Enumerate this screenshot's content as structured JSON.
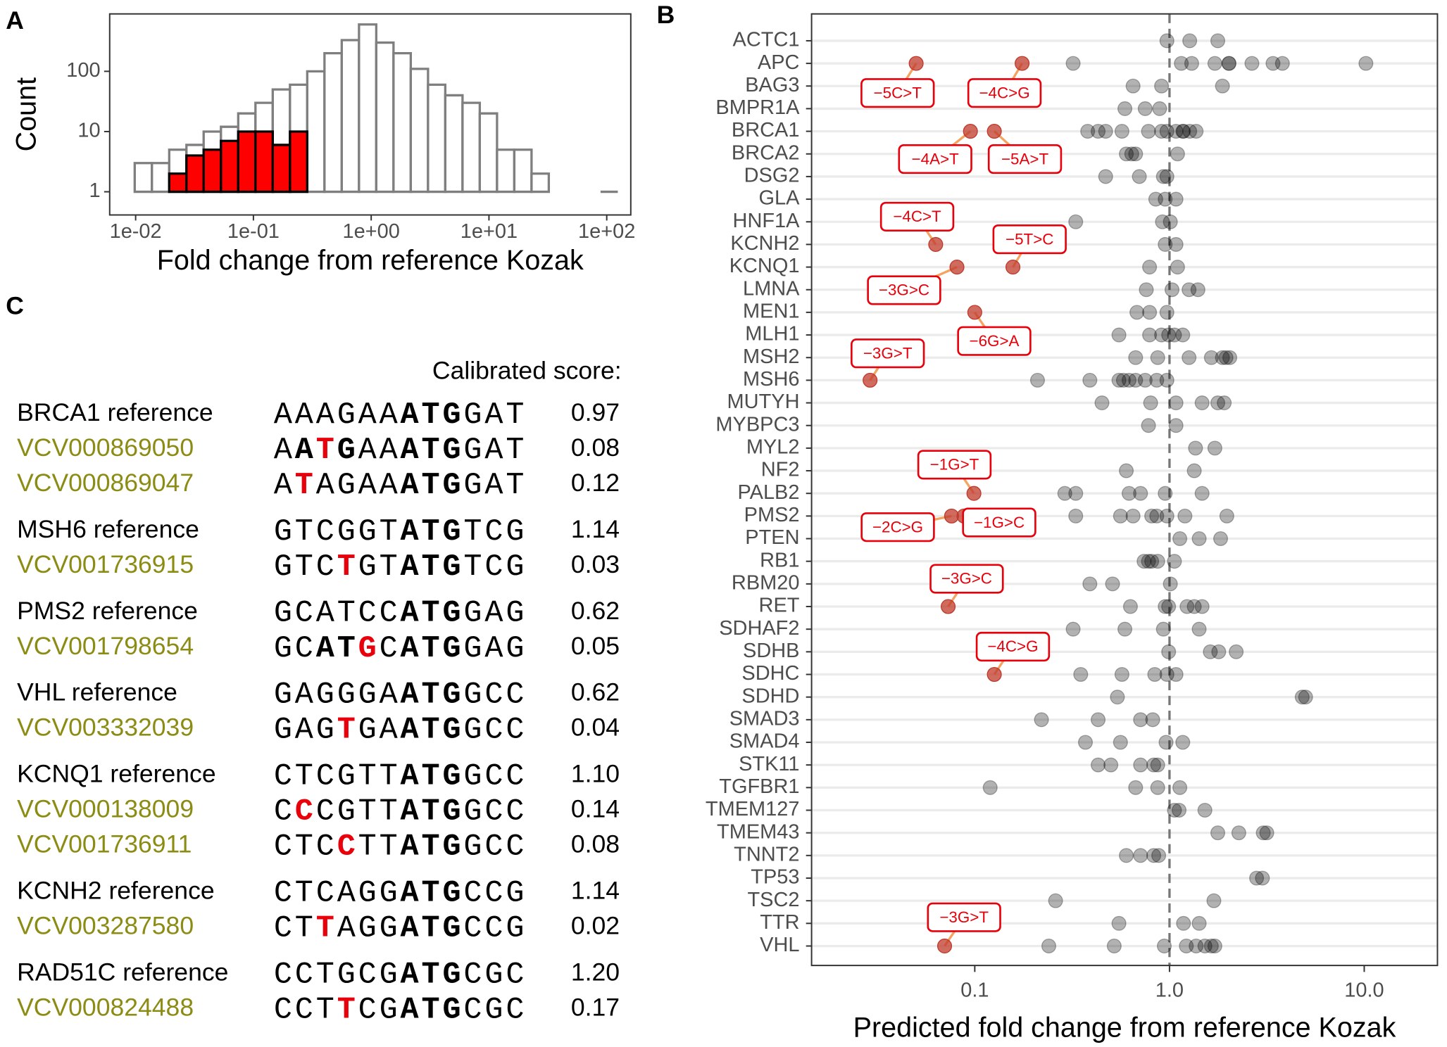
{
  "panel_labels": [
    "A",
    "B",
    "C"
  ],
  "chart_data": [
    {
      "type": "histogram",
      "ylabel": "Count",
      "xlabel": "Fold change from reference Kozak",
      "log_x": true,
      "log_y": true,
      "bins": [
        0.00982,
        0.01375,
        0.01928,
        0.027,
        0.0378,
        0.053,
        0.0743,
        0.1041,
        0.1459,
        0.2044,
        0.2864,
        0.4013,
        0.5623,
        0.788,
        1.104,
        1.547,
        2.168,
        3.038,
        4.256,
        5.964,
        8.356,
        11.71,
        16.41,
        22.99,
        32.21,
        45.13,
        63.24,
        88.6,
        124.2
      ],
      "series": [
        {
          "color": "#7f7f7f",
          "fill": "#ffffff",
          "values": [
            3,
            3,
            5,
            6,
            10,
            12,
            20,
            30,
            50,
            60,
            100,
            200,
            330,
            600,
            300,
            200,
            110,
            60,
            40,
            30,
            20,
            5,
            5,
            2,
            0,
            0,
            0,
            1
          ]
        },
        {
          "color": "#000000",
          "fill": "#ff0000",
          "values": [
            0,
            0,
            2,
            4,
            5,
            7,
            10,
            10,
            6,
            10,
            0,
            0,
            0,
            0,
            0,
            0,
            0,
            0,
            0,
            0,
            0,
            0,
            0,
            0,
            0,
            0,
            0,
            0
          ]
        }
      ],
      "xlim": [
        0.00602,
        160
      ],
      "ylim": [
        0.412,
        899
      ],
      "xticks": [
        {
          "value": 0.01,
          "label": "1e-02"
        },
        {
          "value": 0.1,
          "label": "1e-01"
        },
        {
          "value": 1,
          "label": "1e+00"
        },
        {
          "value": 10,
          "label": "1e+01"
        },
        {
          "value": 100,
          "label": "1e+02"
        }
      ],
      "yticks": [
        1,
        10,
        100
      ]
    },
    {
      "type": "dot",
      "xlabel": "Predicted fold change from reference Kozak",
      "log_x": true,
      "grid": true,
      "reference_line": 1,
      "point_color": "#000000",
      "point_opacity": 0.3,
      "variant_color": "#c0392b",
      "label_color": "#e8000b",
      "connector_color": "#f4a460",
      "xlim": [
        0.01452,
        23.77
      ],
      "xticks": [
        0.1,
        {
          "value": 1,
          "label": "1.0"
        },
        {
          "value": 10,
          "label": "10.0"
        }
      ],
      "rows": [
        {
          "gene": "ACTC1",
          "values": [
            0.97,
            1.27,
            1.77
          ]
        },
        {
          "gene": "APC",
          "values": [
            0.32,
            1.15,
            1.3,
            1.71,
            2.02,
            2.02,
            2.65,
            3.4,
            3.8,
            10.2
          ],
          "variants": [
            {
              "value": 0.05,
              "label": "−5C>T"
            },
            {
              "value": 0.175,
              "label": "−4C>G"
            }
          ]
        },
        {
          "gene": "BAG3",
          "values": [
            0.65,
            0.91,
            1.87
          ]
        },
        {
          "gene": "BMPR1A",
          "values": [
            0.59,
            0.75,
            0.89
          ]
        },
        {
          "gene": "BRCA1",
          "values": [
            0.38,
            0.43,
            0.47,
            0.57,
            0.78,
            0.91,
            0.97,
            1.08,
            1.17,
            1.18,
            1.27,
            1.37
          ],
          "variants": [
            {
              "value": 0.095,
              "label": "−4A>T"
            },
            {
              "value": 0.126,
              "label": "−5A>T"
            }
          ]
        },
        {
          "gene": "BRCA2",
          "values": [
            0.6,
            0.64,
            0.67,
            1.1
          ]
        },
        {
          "gene": "DSG2",
          "values": [
            0.47,
            0.7,
            0.93,
            0.97
          ]
        },
        {
          "gene": "GLA",
          "values": [
            0.85,
            0.95,
            1.08
          ]
        },
        {
          "gene": "HNF1A",
          "values": [
            0.33,
            0.92,
            1.01
          ]
        },
        {
          "gene": "KCNH2",
          "values": [
            0.95,
            1.08
          ],
          "variants": [
            {
              "value": 0.063,
              "label": "−4C>T"
            }
          ]
        },
        {
          "gene": "KCNQ1",
          "values": [
            0.79,
            1.1
          ],
          "variants": [
            {
              "value": 0.081,
              "label": "−3G>C"
            },
            {
              "value": 0.157,
              "label": "−5T>C"
            }
          ]
        },
        {
          "gene": "LMNA",
          "values": [
            0.76,
            1.03,
            1.26,
            1.4
          ]
        },
        {
          "gene": "MEN1",
          "values": [
            0.68,
            0.79,
            0.97
          ],
          "variants": [
            {
              "value": 0.1,
              "label": "−6G>A"
            }
          ]
        },
        {
          "gene": "MLH1",
          "values": [
            0.55,
            0.79,
            0.91,
            0.99,
            1.06,
            1.17
          ]
        },
        {
          "gene": "MSH2",
          "values": [
            0.67,
            0.87,
            1.26,
            1.64,
            1.87,
            1.95,
            2.04
          ]
        },
        {
          "gene": "MSH6",
          "values": [
            0.21,
            0.39,
            0.55,
            0.58,
            0.62,
            0.67,
            0.75,
            0.86,
            0.97
          ],
          "variants": [
            {
              "value": 0.029,
              "label": "−3G>T"
            }
          ]
        },
        {
          "gene": "MUTYH",
          "values": [
            0.45,
            0.8,
            1.08,
            1.47,
            1.77,
            1.91
          ]
        },
        {
          "gene": "MYBPC3",
          "values": [
            0.78,
            1.08
          ]
        },
        {
          "gene": "MYL2",
          "values": [
            1.36,
            1.71
          ]
        },
        {
          "gene": "NF2",
          "values": [
            0.6,
            1.34
          ]
        },
        {
          "gene": "PALB2",
          "values": [
            0.29,
            0.33,
            0.62,
            0.71,
            0.95,
            1.47
          ],
          "variants": [
            {
              "value": 0.099,
              "label": "−1G>T"
            }
          ]
        },
        {
          "gene": "PMS2",
          "values": [
            0.33,
            0.56,
            0.65,
            0.81,
            0.86,
            0.97,
            1.2,
            1.97
          ],
          "variants": [
            {
              "value": 0.076,
              "label": "−2C>G"
            },
            {
              "value": 0.088,
              "label": "−1G>C"
            }
          ]
        },
        {
          "gene": "PTEN",
          "values": [
            1.13,
            1.42,
            1.83
          ]
        },
        {
          "gene": "RB1",
          "values": [
            0.74,
            0.78,
            0.81,
            0.87,
            1.06
          ]
        },
        {
          "gene": "RBM20",
          "values": [
            0.39,
            0.51,
            1.01
          ]
        },
        {
          "gene": "RET",
          "values": [
            0.63,
            0.95,
            0.99,
            1.23,
            1.34,
            1.47
          ],
          "variants": [
            {
              "value": 0.073,
              "label": "−3G>C"
            }
          ]
        },
        {
          "gene": "SDHAF2",
          "values": [
            0.32,
            0.59,
            0.93,
            1.42
          ]
        },
        {
          "gene": "SDHB",
          "values": [
            0.99,
            1.62,
            1.79,
            2.2
          ]
        },
        {
          "gene": "SDHC",
          "values": [
            0.35,
            0.57,
            0.84,
            0.97,
            1.08
          ],
          "variants": [
            {
              "value": 0.126,
              "label": "−4C>G"
            }
          ]
        },
        {
          "gene": "SDHD",
          "values": [
            0.54,
            4.8,
            5.0
          ]
        },
        {
          "gene": "SMAD3",
          "values": [
            0.22,
            0.43,
            0.71,
            0.82
          ]
        },
        {
          "gene": "SMAD4",
          "values": [
            0.37,
            0.56,
            0.96,
            1.17
          ]
        },
        {
          "gene": "STK11",
          "values": [
            0.43,
            0.5,
            0.71,
            0.83,
            0.87
          ]
        },
        {
          "gene": "TGFBR1",
          "values": [
            0.12,
            0.67,
            0.87,
            1.13
          ]
        },
        {
          "gene": "TMEM127",
          "values": [
            1.06,
            1.12,
            1.52
          ]
        },
        {
          "gene": "TMEM43",
          "values": [
            1.77,
            2.27,
            3.03,
            3.16
          ]
        },
        {
          "gene": "TNNT2",
          "values": [
            0.6,
            0.71,
            0.83,
            0.88
          ]
        },
        {
          "gene": "TP53",
          "values": [
            2.8,
            3.0
          ]
        },
        {
          "gene": "TSC2",
          "values": [
            0.26,
            1.69
          ]
        },
        {
          "gene": "TTR",
          "values": [
            0.55,
            1.18,
            1.42
          ]
        },
        {
          "gene": "VHL",
          "values": [
            0.24,
            0.52,
            0.94,
            1.22,
            1.37,
            1.52,
            1.64,
            1.71
          ],
          "variants": [
            {
              "value": 0.07,
              "label": "−3G>T"
            }
          ]
        }
      ]
    }
  ],
  "sequence_table": {
    "header": "Calibrated score:",
    "reference_color": "#000000",
    "variant_color": "#8c8c14",
    "mutation_color": "#e8000b",
    "groups": [
      {
        "rows": [
          {
            "name": "BRCA1 reference",
            "kind": "reference",
            "score": "0.97",
            "segments": [
              {
                "text": "AAAGAA"
              },
              {
                "text": "ATG",
                "bold": true
              },
              {
                "text": "GAT"
              }
            ]
          },
          {
            "name": "VCV000869050",
            "kind": "variant",
            "score": "0.08",
            "segments": [
              {
                "text": "A"
              },
              {
                "text": "A",
                "bold": true
              },
              {
                "text": "T",
                "mutated": true
              },
              {
                "text": "G",
                "bold": true
              },
              {
                "text": "AA"
              },
              {
                "text": "ATG",
                "bold": true
              },
              {
                "text": "GAT"
              }
            ]
          },
          {
            "name": "VCV000869047",
            "kind": "variant",
            "score": "0.12",
            "segments": [
              {
                "text": "A"
              },
              {
                "text": "T",
                "mutated": true
              },
              {
                "text": "AGAA"
              },
              {
                "text": "ATG",
                "bold": true
              },
              {
                "text": "GAT"
              }
            ]
          }
        ]
      },
      {
        "rows": [
          {
            "name": "MSH6 reference",
            "kind": "reference",
            "score": "1.14",
            "segments": [
              {
                "text": "GTCGGT"
              },
              {
                "text": "ATG",
                "bold": true
              },
              {
                "text": "TCG"
              }
            ]
          },
          {
            "name": "VCV001736915",
            "kind": "variant",
            "score": "0.03",
            "segments": [
              {
                "text": "GTC"
              },
              {
                "text": "T",
                "mutated": true
              },
              {
                "text": "GT"
              },
              {
                "text": "ATG",
                "bold": true
              },
              {
                "text": "TCG"
              }
            ]
          }
        ]
      },
      {
        "rows": [
          {
            "name": "PMS2 reference",
            "kind": "reference",
            "score": "0.62",
            "segments": [
              {
                "text": "GCATCC"
              },
              {
                "text": "ATG",
                "bold": true
              },
              {
                "text": "GAG"
              }
            ]
          },
          {
            "name": "VCV001798654",
            "kind": "variant",
            "score": "0.05",
            "segments": [
              {
                "text": "GC"
              },
              {
                "text": "AT",
                "bold": true
              },
              {
                "text": "G",
                "mutated": true
              },
              {
                "text": "C"
              },
              {
                "text": "ATG",
                "bold": true
              },
              {
                "text": "GAG"
              }
            ]
          }
        ]
      },
      {
        "rows": [
          {
            "name": "VHL reference",
            "kind": "reference",
            "score": "0.62",
            "segments": [
              {
                "text": "GAGGGA"
              },
              {
                "text": "ATG",
                "bold": true
              },
              {
                "text": "GCC"
              }
            ]
          },
          {
            "name": "VCV003332039",
            "kind": "variant",
            "score": "0.04",
            "segments": [
              {
                "text": "GAG"
              },
              {
                "text": "T",
                "mutated": true
              },
              {
                "text": "GA"
              },
              {
                "text": "ATG",
                "bold": true
              },
              {
                "text": "GCC"
              }
            ]
          }
        ]
      },
      {
        "rows": [
          {
            "name": "KCNQ1 reference",
            "kind": "reference",
            "score": "1.10",
            "segments": [
              {
                "text": "CTCGTT"
              },
              {
                "text": "ATG",
                "bold": true
              },
              {
                "text": "GCC"
              }
            ]
          },
          {
            "name": "VCV000138009",
            "kind": "variant",
            "score": "0.14",
            "segments": [
              {
                "text": "C"
              },
              {
                "text": "C",
                "mutated": true
              },
              {
                "text": "CGTT"
              },
              {
                "text": "ATG",
                "bold": true
              },
              {
                "text": "GCC"
              }
            ]
          },
          {
            "name": "VCV001736911",
            "kind": "variant",
            "score": "0.08",
            "segments": [
              {
                "text": "CTC"
              },
              {
                "text": "C",
                "mutated": true
              },
              {
                "text": "TT"
              },
              {
                "text": "ATG",
                "bold": true
              },
              {
                "text": "GCC"
              }
            ]
          }
        ]
      },
      {
        "rows": [
          {
            "name": "KCNH2 reference",
            "kind": "reference",
            "score": "1.14",
            "segments": [
              {
                "text": "CTCAGG"
              },
              {
                "text": "ATG",
                "bold": true
              },
              {
                "text": "CCG"
              }
            ]
          },
          {
            "name": "VCV003287580",
            "kind": "variant",
            "score": "0.02",
            "segments": [
              {
                "text": "CT"
              },
              {
                "text": "T",
                "mutated": true
              },
              {
                "text": "AGG"
              },
              {
                "text": "ATG",
                "bold": true
              },
              {
                "text": "CCG"
              }
            ]
          }
        ]
      },
      {
        "rows": [
          {
            "name": "RAD51C reference",
            "kind": "reference",
            "score": "1.20",
            "segments": [
              {
                "text": "CCTGCG"
              },
              {
                "text": "ATG",
                "bold": true
              },
              {
                "text": "CGC"
              }
            ]
          },
          {
            "name": "VCV000824488",
            "kind": "variant",
            "score": "0.17",
            "segments": [
              {
                "text": "CCT"
              },
              {
                "text": "T",
                "mutated": true
              },
              {
                "text": "CG"
              },
              {
                "text": "ATG",
                "bold": true
              },
              {
                "text": "CGC"
              }
            ]
          }
        ]
      }
    ]
  }
}
